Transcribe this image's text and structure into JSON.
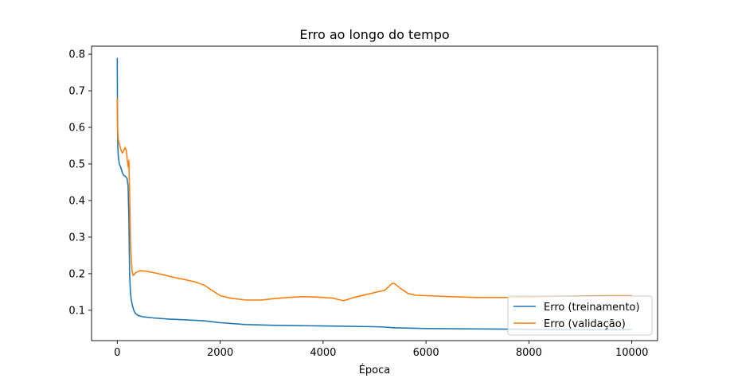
{
  "chart_data": {
    "type": "line",
    "title": "Erro ao longo do tempo",
    "xlabel": "Época",
    "ylabel": "",
    "xlim": [
      -500,
      10500
    ],
    "ylim": [
      0.017,
      0.822
    ],
    "xticks": [
      0,
      2000,
      4000,
      6000,
      8000,
      10000
    ],
    "xtick_labels": [
      "0",
      "2000",
      "4000",
      "6000",
      "8000",
      "10000"
    ],
    "yticks": [
      0.1,
      0.2,
      0.3,
      0.4,
      0.5,
      0.6,
      0.7,
      0.8
    ],
    "ytick_labels": [
      "0.1",
      "0.2",
      "0.3",
      "0.4",
      "0.5",
      "0.6",
      "0.7",
      "0.8"
    ],
    "grid": false,
    "legend_position": "bottom-right",
    "series": [
      {
        "name": "Erro (treinamento)",
        "color": "#1f77b4",
        "x": [
          0,
          5,
          10,
          20,
          40,
          70,
          100,
          130,
          160,
          190,
          210,
          225,
          240,
          255,
          270,
          290,
          320,
          350,
          400,
          500,
          700,
          1000,
          1300,
          1700,
          2000,
          2500,
          3000,
          4000,
          5000,
          5200,
          5400,
          6000,
          7000,
          8000,
          9000,
          10000
        ],
        "values": [
          0.79,
          0.63,
          0.55,
          0.52,
          0.5,
          0.49,
          0.475,
          0.468,
          0.466,
          0.46,
          0.44,
          0.35,
          0.2,
          0.15,
          0.13,
          0.115,
          0.1,
          0.092,
          0.086,
          0.082,
          0.079,
          0.076,
          0.074,
          0.071,
          0.066,
          0.061,
          0.059,
          0.057,
          0.055,
          0.054,
          0.052,
          0.05,
          0.049,
          0.048,
          0.047,
          0.047
        ]
      },
      {
        "name": "Erro (validação)",
        "color": "#ff7f0e",
        "x": [
          0,
          5,
          10,
          20,
          40,
          60,
          80,
          100,
          120,
          150,
          170,
          180,
          200,
          215,
          225,
          235,
          245,
          255,
          270,
          290,
          310,
          340,
          380,
          450,
          550,
          700,
          900,
          1100,
          1300,
          1500,
          1700,
          1800,
          2000,
          2200,
          2500,
          2800,
          3000,
          3300,
          3600,
          3900,
          4200,
          4300,
          4400,
          4600,
          4900,
          5200,
          5300,
          5350,
          5400,
          5500,
          5650,
          5800,
          6000,
          6500,
          7000,
          7500,
          8000,
          8500,
          9000,
          9500,
          10000
        ],
        "values": [
          0.68,
          0.6,
          0.58,
          0.565,
          0.555,
          0.545,
          0.535,
          0.53,
          0.535,
          0.545,
          0.54,
          0.53,
          0.505,
          0.49,
          0.51,
          0.45,
          0.38,
          0.3,
          0.24,
          0.205,
          0.195,
          0.2,
          0.205,
          0.208,
          0.207,
          0.203,
          0.197,
          0.19,
          0.184,
          0.178,
          0.168,
          0.158,
          0.14,
          0.133,
          0.128,
          0.128,
          0.131,
          0.135,
          0.137,
          0.136,
          0.133,
          0.129,
          0.126,
          0.135,
          0.145,
          0.155,
          0.168,
          0.174,
          0.172,
          0.16,
          0.146,
          0.141,
          0.14,
          0.137,
          0.135,
          0.135,
          0.136,
          0.138,
          0.139,
          0.14,
          0.14
        ]
      }
    ]
  }
}
